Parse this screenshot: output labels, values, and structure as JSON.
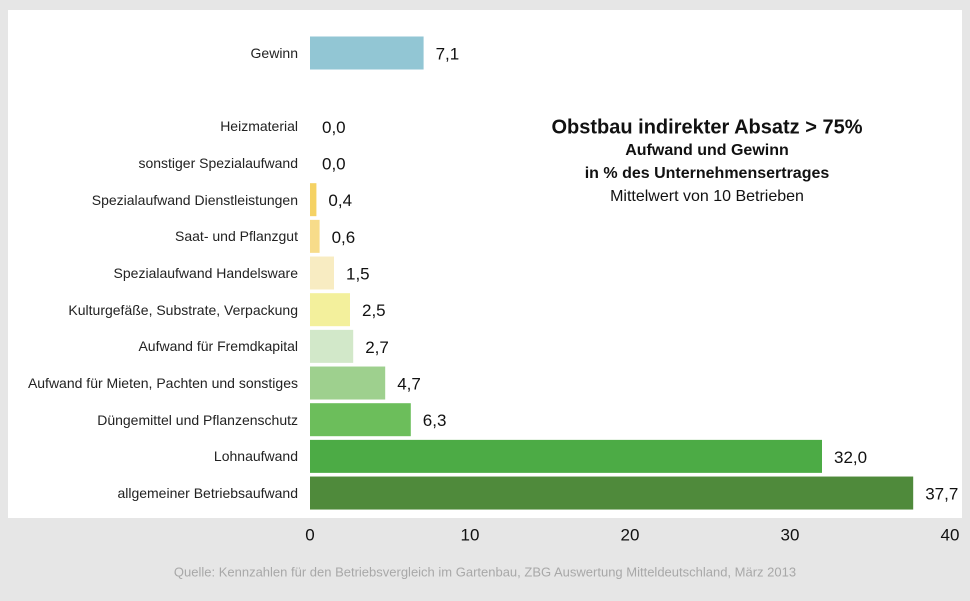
{
  "chart_data": {
    "type": "bar",
    "orientation": "horizontal",
    "title": "Obstbau indirekter Absatz > 75%",
    "subtitle_lines": [
      "Aufwand und Gewinn",
      "in % des Unternehmensertrages",
      "Mittelwert von 10 Betrieben"
    ],
    "source": "Quelle:  Kennzahlen  für  den  Betriebsvergleich  im  Gartenbau,  ZBG  Auswertung  Mitteldeutschland,  März 2013",
    "categories": [
      "Gewinn",
      null,
      "Heizmaterial",
      "sonstiger Spezialaufwand",
      "Spezialaufwand Dienstleistungen",
      "Saat- und Pflanzgut",
      "Spezialaufwand Handelsware",
      "Kulturgefäße, Substrate, Verpackung",
      "Aufwand für Fremdkapital",
      "Aufwand für Mieten, Pachten und sonstiges",
      "Düngemittel und Pflanzenschutz",
      "Lohnaufwand",
      "allgemeiner Betriebsaufwand"
    ],
    "values": [
      7.1,
      null,
      0.0,
      0.0,
      0.4,
      0.6,
      1.5,
      2.5,
      2.7,
      4.7,
      6.3,
      32.0,
      37.7
    ],
    "value_labels": [
      "7,1",
      null,
      "0,0",
      "0,0",
      "0,4",
      "0,6",
      "1,5",
      "2,5",
      "2,7",
      "4,7",
      "6,3",
      "32,0",
      "37,7"
    ],
    "colors": [
      "#92c6d4",
      null,
      "#f2c94c",
      "#f2c94c",
      "#f5d264",
      "#f7dc8a",
      "#f8ecc2",
      "#f3f09c",
      "#d2e8c9",
      "#9ed08e",
      "#6cbe5b",
      "#4cab45",
      "#4f8a3b"
    ],
    "xlim": [
      0,
      40
    ],
    "xticks": [
      0,
      10,
      20,
      30,
      40
    ]
  }
}
